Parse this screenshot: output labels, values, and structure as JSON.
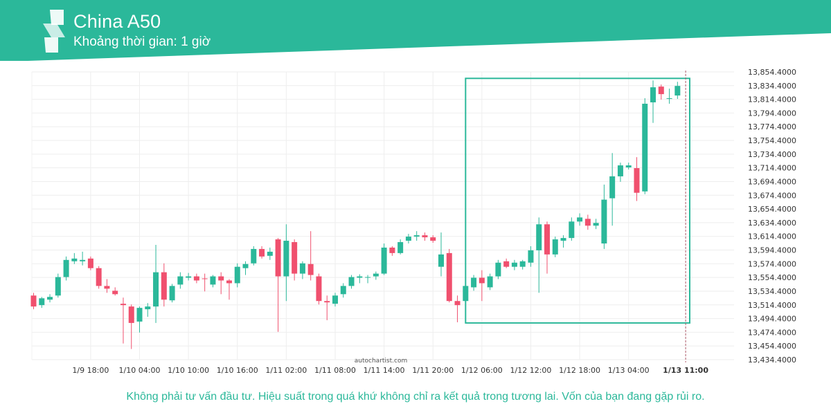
{
  "header": {
    "title": "China A50",
    "subtitle": "Khoảng thời gian: 1 giờ"
  },
  "colors": {
    "brand": "#2bb89a",
    "bull": "#2bb89a",
    "bear": "#f0506e",
    "grid": "#eeeeee"
  },
  "icons": {
    "logo": "autochartist-logo"
  },
  "watermark": "autochartist.com",
  "disclaimer": "Không phải tư vấn đầu tư. Hiệu suất trong quá khứ không chỉ ra kết quả trong tương lai. Vốn của bạn đang gặp rủi ro.",
  "chart_data": {
    "type": "candlestick",
    "y_ticks": [
      "13,854.4000",
      "13,834.4000",
      "13,814.4000",
      "13,794.4000",
      "13,774.4000",
      "13,754.4000",
      "13,734.4000",
      "13,714.4000",
      "13,694.4000",
      "13,674.4000",
      "13,654.4000",
      "13,634.4000",
      "13,614.4000",
      "13,594.4000",
      "13,574.4000",
      "13,554.4000",
      "13,534.4000",
      "13,514.4000",
      "13,494.4000",
      "13,474.4000",
      "13,454.4000",
      "13,434.4000"
    ],
    "ylim": [
      13434.4,
      13854.4
    ],
    "x_ticks": [
      {
        "label": "1/9 18:00",
        "i": 7
      },
      {
        "label": "1/10 04:00",
        "i": 13
      },
      {
        "label": "1/10 10:00",
        "i": 19
      },
      {
        "label": "1/10 16:00",
        "i": 25
      },
      {
        "label": "1/11 02:00",
        "i": 31
      },
      {
        "label": "1/11 08:00",
        "i": 37
      },
      {
        "label": "1/11 14:00",
        "i": 43
      },
      {
        "label": "1/11 20:00",
        "i": 49
      },
      {
        "label": "1/12 06:00",
        "i": 55
      },
      {
        "label": "1/12 12:00",
        "i": 61
      },
      {
        "label": "1/12 18:00",
        "i": 67
      },
      {
        "label": "1/13 04:00",
        "i": 73
      },
      {
        "label": "1/13 11:00",
        "i": 80,
        "bold": true
      }
    ],
    "current_time_marker": {
      "label": "1/13 11:00",
      "i": 80
    },
    "pattern_box": {
      "i_start": 53,
      "i_end": 80.5,
      "high": 13845,
      "low": 13488
    },
    "candles": [
      {
        "o": 13528,
        "h": 13532,
        "l": 13508,
        "c": 13512
      },
      {
        "o": 13514,
        "h": 13526,
        "l": 13510,
        "c": 13524
      },
      {
        "o": 13522,
        "h": 13530,
        "l": 13518,
        "c": 13526
      },
      {
        "o": 13528,
        "h": 13560,
        "l": 13525,
        "c": 13555
      },
      {
        "o": 13555,
        "h": 13585,
        "l": 13550,
        "c": 13580
      },
      {
        "o": 13578,
        "h": 13590,
        "l": 13574,
        "c": 13582
      },
      {
        "o": 13578,
        "h": 13592,
        "l": 13572,
        "c": 13580
      },
      {
        "o": 13582,
        "h": 13585,
        "l": 13565,
        "c": 13568
      },
      {
        "o": 13568,
        "h": 13571,
        "l": 13538,
        "c": 13542
      },
      {
        "o": 13542,
        "h": 13552,
        "l": 13532,
        "c": 13538
      },
      {
        "o": 13535,
        "h": 13540,
        "l": 13528,
        "c": 13530
      },
      {
        "o": 13516,
        "h": 13525,
        "l": 13458,
        "c": 13514
      },
      {
        "o": 13512,
        "h": 13515,
        "l": 13450,
        "c": 13488
      },
      {
        "o": 13490,
        "h": 13512,
        "l": 13474,
        "c": 13510
      },
      {
        "o": 13508,
        "h": 13517,
        "l": 13497,
        "c": 13512
      },
      {
        "o": 13512,
        "h": 13602,
        "l": 13488,
        "c": 13562
      },
      {
        "o": 13562,
        "h": 13575,
        "l": 13512,
        "c": 13522
      },
      {
        "o": 13521,
        "h": 13545,
        "l": 13518,
        "c": 13542
      },
      {
        "o": 13544,
        "h": 13562,
        "l": 13538,
        "c": 13556
      },
      {
        "o": 13554,
        "h": 13561,
        "l": 13550,
        "c": 13556
      },
      {
        "o": 13556,
        "h": 13560,
        "l": 13546,
        "c": 13550
      },
      {
        "o": 13553,
        "h": 13560,
        "l": 13534,
        "c": 13552
      },
      {
        "o": 13544,
        "h": 13558,
        "l": 13540,
        "c": 13556
      },
      {
        "o": 13556,
        "h": 13562,
        "l": 13530,
        "c": 13550
      },
      {
        "o": 13550,
        "h": 13552,
        "l": 13522,
        "c": 13546
      },
      {
        "o": 13546,
        "h": 13575,
        "l": 13540,
        "c": 13570
      },
      {
        "o": 13568,
        "h": 13578,
        "l": 13558,
        "c": 13574
      },
      {
        "o": 13575,
        "h": 13600,
        "l": 13572,
        "c": 13596
      },
      {
        "o": 13596,
        "h": 13600,
        "l": 13582,
        "c": 13585
      },
      {
        "o": 13586,
        "h": 13598,
        "l": 13580,
        "c": 13592
      },
      {
        "o": 13610,
        "h": 13612,
        "l": 13475,
        "c": 13556
      },
      {
        "o": 13556,
        "h": 13632,
        "l": 13520,
        "c": 13608
      },
      {
        "o": 13606,
        "h": 13610,
        "l": 13550,
        "c": 13560
      },
      {
        "o": 13560,
        "h": 13578,
        "l": 13552,
        "c": 13575
      },
      {
        "o": 13574,
        "h": 13622,
        "l": 13550,
        "c": 13558
      },
      {
        "o": 13556,
        "h": 13560,
        "l": 13515,
        "c": 13520
      },
      {
        "o": 13520,
        "h": 13528,
        "l": 13492,
        "c": 13518
      },
      {
        "o": 13516,
        "h": 13532,
        "l": 13512,
        "c": 13528
      },
      {
        "o": 13530,
        "h": 13546,
        "l": 13525,
        "c": 13542
      },
      {
        "o": 13542,
        "h": 13558,
        "l": 13538,
        "c": 13555
      },
      {
        "o": 13554,
        "h": 13559,
        "l": 13546,
        "c": 13556
      },
      {
        "o": 13555,
        "h": 13558,
        "l": 13546,
        "c": 13555
      },
      {
        "o": 13556,
        "h": 13563,
        "l": 13551,
        "c": 13560
      },
      {
        "o": 13560,
        "h": 13604,
        "l": 13558,
        "c": 13598
      },
      {
        "o": 13598,
        "h": 13600,
        "l": 13586,
        "c": 13590
      },
      {
        "o": 13590,
        "h": 13610,
        "l": 13588,
        "c": 13606
      },
      {
        "o": 13608,
        "h": 13618,
        "l": 13604,
        "c": 13614
      },
      {
        "o": 13614,
        "h": 13622,
        "l": 13608,
        "c": 13616
      },
      {
        "o": 13616,
        "h": 13620,
        "l": 13608,
        "c": 13613
      },
      {
        "o": 13613,
        "h": 13616,
        "l": 13605,
        "c": 13608
      },
      {
        "o": 13570,
        "h": 13620,
        "l": 13556,
        "c": 13588
      },
      {
        "o": 13590,
        "h": 13596,
        "l": 13518,
        "c": 13520
      },
      {
        "o": 13520,
        "h": 13528,
        "l": 13489,
        "c": 13514
      },
      {
        "o": 13520,
        "h": 13550,
        "l": 13514,
        "c": 13542
      },
      {
        "o": 13540,
        "h": 13558,
        "l": 13535,
        "c": 13554
      },
      {
        "o": 13554,
        "h": 13565,
        "l": 13520,
        "c": 13546
      },
      {
        "o": 13540,
        "h": 13560,
        "l": 13536,
        "c": 13556
      },
      {
        "o": 13556,
        "h": 13580,
        "l": 13552,
        "c": 13576
      },
      {
        "o": 13578,
        "h": 13582,
        "l": 13568,
        "c": 13570
      },
      {
        "o": 13570,
        "h": 13580,
        "l": 13565,
        "c": 13576
      },
      {
        "o": 13570,
        "h": 13580,
        "l": 13566,
        "c": 13578
      },
      {
        "o": 13576,
        "h": 13600,
        "l": 13570,
        "c": 13594
      },
      {
        "o": 13594,
        "h": 13642,
        "l": 13532,
        "c": 13632
      },
      {
        "o": 13632,
        "h": 13636,
        "l": 13560,
        "c": 13588
      },
      {
        "o": 13588,
        "h": 13614,
        "l": 13584,
        "c": 13610
      },
      {
        "o": 13608,
        "h": 13616,
        "l": 13598,
        "c": 13612
      },
      {
        "o": 13612,
        "h": 13642,
        "l": 13608,
        "c": 13636
      },
      {
        "o": 13636,
        "h": 13648,
        "l": 13630,
        "c": 13642
      },
      {
        "o": 13640,
        "h": 13646,
        "l": 13624,
        "c": 13630
      },
      {
        "o": 13630,
        "h": 13640,
        "l": 13625,
        "c": 13634
      },
      {
        "o": 13604,
        "h": 13690,
        "l": 13596,
        "c": 13668
      },
      {
        "o": 13670,
        "h": 13736,
        "l": 13630,
        "c": 13702
      },
      {
        "o": 13702,
        "h": 13722,
        "l": 13694,
        "c": 13718
      },
      {
        "o": 13715,
        "h": 13722,
        "l": 13712,
        "c": 13718
      },
      {
        "o": 13714,
        "h": 13730,
        "l": 13666,
        "c": 13678
      },
      {
        "o": 13680,
        "h": 13816,
        "l": 13676,
        "c": 13808
      },
      {
        "o": 13810,
        "h": 13842,
        "l": 13780,
        "c": 13832
      },
      {
        "o": 13833,
        "h": 13836,
        "l": 13814,
        "c": 13822
      },
      {
        "o": 13816,
        "h": 13830,
        "l": 13808,
        "c": 13816
      },
      {
        "o": 13820,
        "h": 13840,
        "l": 13815,
        "c": 13834
      }
    ]
  }
}
